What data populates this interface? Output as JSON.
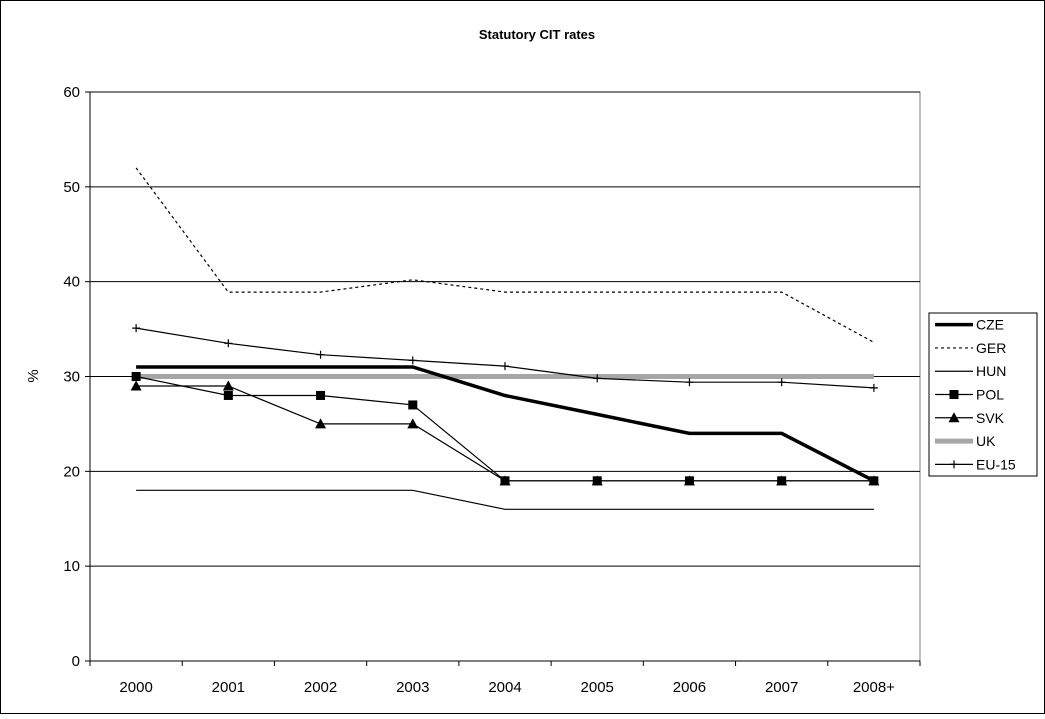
{
  "chart_data": {
    "type": "line",
    "title": "Statutory CIT rates",
    "xlabel": "",
    "ylabel": "%",
    "categories": [
      "2000",
      "2001",
      "2002",
      "2003",
      "2004",
      "2005",
      "2006",
      "2007",
      "2008+"
    ],
    "ylim": [
      0,
      60
    ],
    "yticks": [
      0,
      10,
      20,
      30,
      40,
      50,
      60
    ],
    "grid": "horizontal",
    "legend_position": "right",
    "series": [
      {
        "name": "CZE",
        "values": [
          31,
          31,
          31,
          31,
          28,
          26,
          24,
          24,
          19
        ],
        "color": "#000000",
        "style": "thick-solid",
        "marker": "none"
      },
      {
        "name": "GER",
        "values": [
          52,
          38.9,
          38.9,
          40.2,
          38.9,
          38.9,
          38.9,
          38.9,
          33.6
        ],
        "color": "#000000",
        "style": "dotted",
        "marker": "none"
      },
      {
        "name": "HUN",
        "values": [
          18,
          18,
          18,
          18,
          16,
          16,
          16,
          16,
          16
        ],
        "color": "#000000",
        "style": "thin-solid",
        "marker": "none"
      },
      {
        "name": "POL",
        "values": [
          30,
          28,
          28,
          27,
          19,
          19,
          19,
          19,
          19
        ],
        "color": "#000000",
        "style": "thin-solid",
        "marker": "square"
      },
      {
        "name": "SVK",
        "values": [
          29,
          29,
          25,
          25,
          19,
          19,
          19,
          19,
          19
        ],
        "color": "#000000",
        "style": "thin-solid",
        "marker": "triangle"
      },
      {
        "name": "UK",
        "values": [
          30,
          30,
          30,
          30,
          30,
          30,
          30,
          30,
          30
        ],
        "color": "#a6a6a6",
        "style": "wide-gray",
        "marker": "none"
      },
      {
        "name": "EU-15",
        "values": [
          35.1,
          33.5,
          32.3,
          31.7,
          31.1,
          29.8,
          29.4,
          29.4,
          28.8
        ],
        "color": "#000000",
        "style": "thin-solid",
        "marker": "plus"
      }
    ]
  }
}
